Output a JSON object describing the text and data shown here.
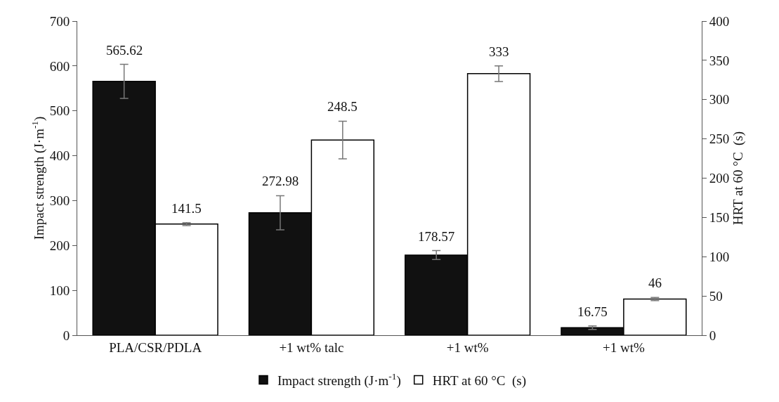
{
  "chart_data": {
    "type": "bar",
    "ylabel": "Impact strength (J·m$^{-1}$)",
    "y2label": "HRT at 60 °C  (s)",
    "categories": [
      "PLA/CSR/PDLA",
      "+1 wt% talc",
      "+1 wt%",
      "+1 wt%"
    ],
    "series": [
      {
        "name": "Impact strength (J·m$^{-1}$)",
        "color": "#111111",
        "values": [
          565.62,
          272.98,
          178.57,
          16.75
        ],
        "errors": [
          38,
          38,
          10,
          4
        ]
      },
      {
        "name": "HRT at 60 °C  (s)",
        "color": "#ffffff",
        "axis": "y2",
        "values": [
          141.5,
          248.5,
          333,
          46
        ],
        "errors": [
          2,
          24,
          10,
          2
        ]
      }
    ],
    "data_labels": true,
    "ylim": [
      0,
      700
    ],
    "yticks": [
      0,
      100,
      200,
      300,
      400,
      500,
      600,
      700
    ],
    "y2lim": [
      0,
      400
    ],
    "y2ticks": [
      0,
      50,
      100,
      150,
      200,
      250,
      300,
      350,
      400
    ],
    "grid": false,
    "legend": "bottom"
  }
}
